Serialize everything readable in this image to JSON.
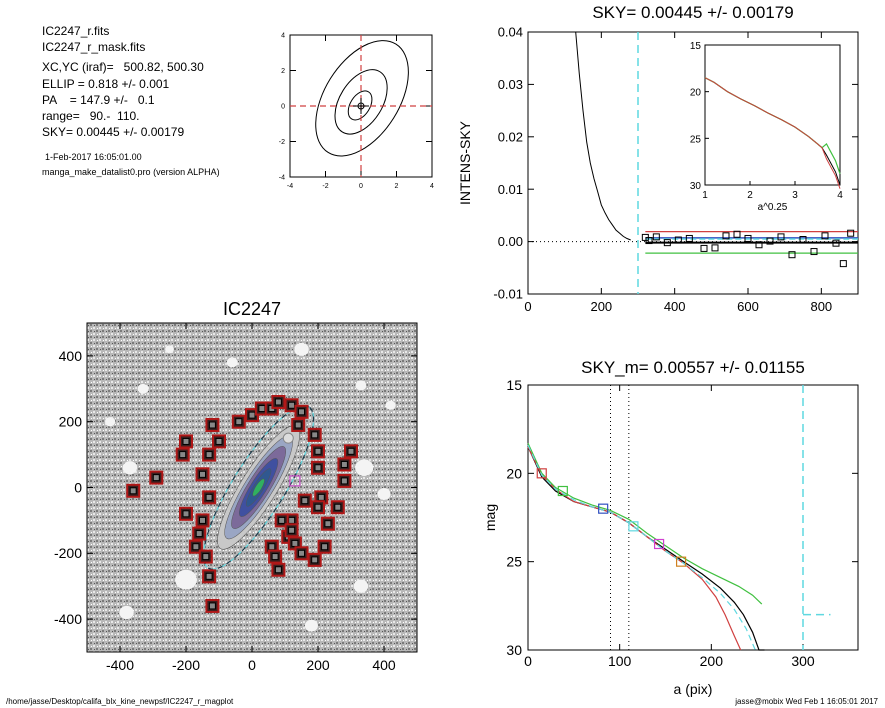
{
  "info": {
    "lines": [
      "IC2247_r.fits",
      "IC2247_r_mask.fits",
      "XC,YC (iraf)=   500.82, 500.30",
      "ELLIP = 0.818 +/- 0.001",
      "PA    = 147.9 +/-   0.1",
      "range=   90.-  110.",
      "SKY= 0.00445 +/- 0.00179"
    ],
    "date": "1-Feb-2017 16:05:01.00",
    "program": "manga_make_datalist0.pro (version ALPHA)"
  },
  "footer": {
    "left": "/home/jasse/Desktop/califa_blx_kine_newpsf/IC2247_r_magplot",
    "right": "jasse@mobix  Wed Feb  1 16:05:01 2017"
  },
  "colors": {
    "cyan": "#5fd8e0",
    "red": "#d04040",
    "green": "#40c040",
    "blue": "#3050c0",
    "magenta": "#d040d0",
    "mask_red": "#b01818"
  },
  "chart_data": [
    {
      "id": "contour",
      "type": "scatter",
      "title": "",
      "xlim": [
        -4,
        4
      ],
      "ylim": [
        -4,
        4
      ],
      "xticks": [
        "-4",
        "-2",
        "0",
        "2",
        "4"
      ],
      "yticks": [
        "4",
        "2",
        "0",
        "-2",
        "-4"
      ],
      "crosshair": [
        0,
        0
      ]
    },
    {
      "id": "sky",
      "type": "line",
      "title": "SKY= 0.00445 +/- 0.00179",
      "xlabel": "",
      "ylabel": "INTENS-SKY",
      "xlim": [
        0,
        900
      ],
      "ylim": [
        -0.01,
        0.04
      ],
      "xticks": [
        "0",
        "200",
        "400",
        "600",
        "800"
      ],
      "yticks": [
        "0.04",
        "0.03",
        "0.02",
        "0.01",
        "0.00",
        "-0.01"
      ],
      "vline_x": 300,
      "profile": {
        "x": [
          130,
          140,
          150,
          160,
          170,
          180,
          190,
          200,
          210,
          220,
          230,
          240,
          250,
          260,
          270,
          280
        ],
        "y": [
          0.04,
          0.032,
          0.025,
          0.019,
          0.015,
          0.012,
          0.0095,
          0.007,
          0.0055,
          0.0042,
          0.0032,
          0.0022,
          0.0016,
          0.001,
          0.0006,
          0.0003
        ]
      },
      "sky_points": {
        "x": [
          320,
          330,
          350,
          380,
          410,
          440,
          480,
          510,
          540,
          570,
          600,
          630,
          660,
          690,
          720,
          750,
          780,
          810,
          840,
          860,
          880
        ],
        "y": [
          0.0008,
          0.0002,
          0.0009,
          -0.0002,
          0.0003,
          0.0006,
          -0.0013,
          -0.0012,
          0.0011,
          0.0014,
          0.0006,
          -0.0006,
          0.0001,
          0.0009,
          -0.0025,
          0.0004,
          -0.0019,
          0.0011,
          -0.0003,
          -0.0042,
          0.0016
        ]
      },
      "sky_levels": {
        "upper": 0.0019,
        "lower": -0.0022,
        "mean": 0.0
      },
      "inset": {
        "xlabel": "a^0.25",
        "xlim": [
          1,
          4
        ],
        "ylim": [
          15,
          30
        ],
        "xticks": [
          "1",
          "2",
          "3",
          "4"
        ],
        "yticks": [
          "15",
          "20",
          "25",
          "30"
        ],
        "x": [
          1.0,
          1.2,
          1.5,
          1.8,
          2.1,
          2.4,
          2.7,
          3.0,
          3.3,
          3.5,
          3.6,
          3.7,
          3.8,
          3.9,
          4.0
        ],
        "y": [
          18.5,
          19.0,
          20.0,
          20.8,
          21.5,
          22.3,
          23.0,
          23.8,
          24.8,
          25.6,
          26.0,
          26.8,
          27.7,
          28.6,
          30.0
        ]
      }
    },
    {
      "id": "image",
      "type": "scatter",
      "title": "IC2247",
      "xlabel": "",
      "ylabel": "",
      "xlim": [
        -500,
        500
      ],
      "ylim": [
        -500,
        500
      ],
      "xticks": [
        "-400",
        "-200",
        "0",
        "200",
        "400"
      ],
      "yticks": [
        "400",
        "200",
        "0",
        "-200",
        "-400"
      ],
      "galaxy_pa_deg": 147.9,
      "mask_boxes": {
        "x": [
          -360,
          -290,
          -200,
          -170,
          -160,
          -140,
          -130,
          -120,
          -120,
          -100,
          -130,
          -150,
          -200,
          -210,
          -150,
          -130,
          -40,
          0,
          30,
          60,
          80,
          120,
          150,
          140,
          190,
          200,
          200,
          210,
          200,
          160,
          120,
          90,
          110,
          60,
          70,
          80,
          120,
          130,
          150,
          190,
          220,
          230,
          260,
          280,
          280,
          300
        ],
        "y": [
          -10,
          30,
          -80,
          -180,
          -140,
          -210,
          -270,
          -360,
          190,
          140,
          100,
          40,
          140,
          100,
          -100,
          -30,
          200,
          220,
          240,
          240,
          260,
          250,
          230,
          190,
          160,
          110,
          60,
          -30,
          -60,
          -40,
          -100,
          -100,
          -150,
          -180,
          -210,
          -250,
          -130,
          -170,
          -200,
          -220,
          -180,
          -110,
          -60,
          20,
          70,
          110
        ]
      }
    },
    {
      "id": "mag",
      "type": "line",
      "title": "SKY_m=  0.00557 +/- 0.01155",
      "xlabel": "a (pix)",
      "ylabel": "mag",
      "xlim": [
        0,
        360
      ],
      "ylim": [
        15,
        30
      ],
      "xticks": [
        "0",
        "100",
        "200",
        "300"
      ],
      "yticks": [
        "15",
        "20",
        "25",
        "30"
      ],
      "dotted_x": [
        90,
        110
      ],
      "dashed_x": 300,
      "dashed_segment": {
        "x": [
          300,
          330
        ],
        "y": 28
      },
      "series": [
        {
          "color": "black",
          "x": [
            0,
            15,
            30,
            50,
            70,
            90,
            110,
            130,
            150,
            170,
            190,
            210,
            225,
            235,
            245,
            252,
            258
          ],
          "y": [
            18.5,
            20.2,
            21.0,
            21.6,
            21.9,
            22.2,
            22.8,
            23.6,
            24.3,
            25.0,
            25.7,
            26.5,
            27.3,
            28.0,
            29.0,
            30.0,
            30.0
          ]
        },
        {
          "color": "red",
          "x": [
            0,
            15,
            30,
            50,
            70,
            90,
            110,
            130,
            150,
            170,
            190,
            205,
            215,
            225,
            232
          ],
          "y": [
            18.5,
            20.1,
            20.9,
            21.6,
            21.9,
            22.2,
            22.8,
            23.6,
            24.4,
            25.1,
            26.0,
            27.0,
            28.0,
            29.2,
            30.0
          ]
        },
        {
          "color": "green",
          "x": [
            0,
            15,
            30,
            50,
            70,
            90,
            110,
            130,
            150,
            170,
            190,
            210,
            230,
            245,
            255
          ],
          "y": [
            18.3,
            20.0,
            20.8,
            21.4,
            21.8,
            22.1,
            22.6,
            23.4,
            24.1,
            24.8,
            25.4,
            25.9,
            26.4,
            26.9,
            27.4
          ]
        },
        {
          "color": "cyan",
          "x": [
            0,
            15,
            30,
            50,
            70,
            90,
            110,
            130,
            150,
            170,
            190,
            210,
            225,
            238,
            248
          ],
          "y": [
            18.4,
            20.1,
            20.9,
            21.5,
            21.9,
            22.2,
            22.8,
            23.6,
            24.4,
            25.1,
            25.9,
            26.8,
            27.7,
            28.8,
            30.0
          ]
        }
      ],
      "markers": [
        {
          "x": 15,
          "y": 20.0,
          "color": "red"
        },
        {
          "x": 38,
          "y": 21.0,
          "color": "green"
        },
        {
          "x": 82,
          "y": 22.0,
          "color": "blue"
        },
        {
          "x": 115,
          "y": 23.0,
          "color": "cyan"
        },
        {
          "x": 143,
          "y": 24.0,
          "color": "magenta"
        },
        {
          "x": 167,
          "y": 25.0,
          "color": "orange"
        }
      ]
    }
  ]
}
